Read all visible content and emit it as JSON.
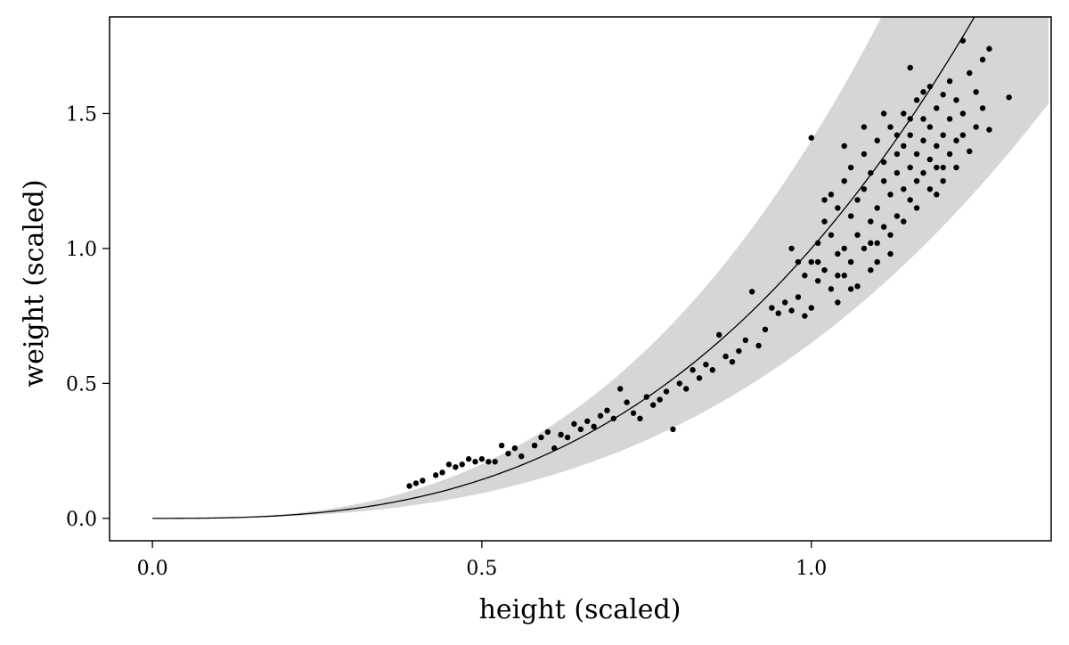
{
  "chart_data": {
    "type": "scatter",
    "title": "",
    "xlabel": "height (scaled)",
    "ylabel": "weight (scaled)",
    "xlim": [
      -0.065,
      1.364
    ],
    "ylim": [
      -0.083,
      1.858
    ],
    "xticks": [
      0.0,
      0.5,
      1.0
    ],
    "xtick_labels": [
      "0.0",
      "0.5",
      "1.0"
    ],
    "yticks": [
      0.0,
      0.5,
      1.0,
      1.5
    ],
    "ytick_labels": [
      "0.0",
      "0.5",
      "1.0",
      "1.5"
    ],
    "grid": false,
    "colors": {
      "points": "#000000",
      "line": "#000000",
      "band": "#d6d6d6"
    },
    "mean_curve": {
      "form": "y = x^2.8",
      "exponent": 2.8
    },
    "interval_band": {
      "lower_factor": 0.65,
      "upper_factor": 1.4
    },
    "points": [
      [
        0.39,
        0.12
      ],
      [
        0.4,
        0.13
      ],
      [
        0.41,
        0.14
      ],
      [
        0.43,
        0.16
      ],
      [
        0.44,
        0.17
      ],
      [
        0.45,
        0.2
      ],
      [
        0.46,
        0.19
      ],
      [
        0.47,
        0.2
      ],
      [
        0.48,
        0.22
      ],
      [
        0.49,
        0.21
      ],
      [
        0.5,
        0.22
      ],
      [
        0.51,
        0.21
      ],
      [
        0.52,
        0.21
      ],
      [
        0.53,
        0.27
      ],
      [
        0.54,
        0.24
      ],
      [
        0.55,
        0.26
      ],
      [
        0.56,
        0.23
      ],
      [
        0.58,
        0.27
      ],
      [
        0.59,
        0.3
      ],
      [
        0.6,
        0.32
      ],
      [
        0.61,
        0.26
      ],
      [
        0.62,
        0.31
      ],
      [
        0.63,
        0.3
      ],
      [
        0.64,
        0.35
      ],
      [
        0.65,
        0.33
      ],
      [
        0.66,
        0.36
      ],
      [
        0.67,
        0.34
      ],
      [
        0.68,
        0.38
      ],
      [
        0.69,
        0.4
      ],
      [
        0.7,
        0.37
      ],
      [
        0.71,
        0.48
      ],
      [
        0.72,
        0.43
      ],
      [
        0.73,
        0.39
      ],
      [
        0.74,
        0.37
      ],
      [
        0.75,
        0.45
      ],
      [
        0.76,
        0.42
      ],
      [
        0.77,
        0.44
      ],
      [
        0.78,
        0.47
      ],
      [
        0.79,
        0.33
      ],
      [
        0.8,
        0.5
      ],
      [
        0.81,
        0.48
      ],
      [
        0.82,
        0.55
      ],
      [
        0.83,
        0.52
      ],
      [
        0.84,
        0.57
      ],
      [
        0.85,
        0.55
      ],
      [
        0.86,
        0.68
      ],
      [
        0.87,
        0.6
      ],
      [
        0.88,
        0.58
      ],
      [
        0.89,
        0.62
      ],
      [
        0.9,
        0.66
      ],
      [
        0.91,
        0.84
      ],
      [
        0.92,
        0.64
      ],
      [
        0.93,
        0.7
      ],
      [
        0.94,
        0.78
      ],
      [
        0.95,
        0.76
      ],
      [
        0.96,
        0.8
      ],
      [
        0.97,
        0.77
      ],
      [
        0.98,
        0.82
      ],
      [
        0.99,
        0.75
      ],
      [
        1.0,
        0.78
      ],
      [
        1.0,
        1.41
      ],
      [
        1.0,
        0.95
      ],
      [
        1.01,
        1.02
      ],
      [
        1.01,
        0.88
      ],
      [
        1.02,
        1.1
      ],
      [
        1.02,
        0.92
      ],
      [
        1.03,
        1.2
      ],
      [
        1.03,
        0.85
      ],
      [
        1.03,
        1.05
      ],
      [
        1.04,
        0.98
      ],
      [
        1.04,
        1.15
      ],
      [
        1.04,
        0.8
      ],
      [
        1.05,
        1.25
      ],
      [
        1.05,
        1.0
      ],
      [
        1.05,
        0.9
      ],
      [
        1.06,
        1.12
      ],
      [
        1.06,
        1.3
      ],
      [
        1.06,
        0.95
      ],
      [
        1.07,
        1.05
      ],
      [
        1.07,
        1.18
      ],
      [
        1.07,
        0.86
      ],
      [
        1.08,
        1.22
      ],
      [
        1.08,
        1.35
      ],
      [
        1.08,
        1.0
      ],
      [
        1.09,
        1.1
      ],
      [
        1.09,
        1.28
      ],
      [
        1.09,
        0.92
      ],
      [
        1.1,
        1.4
      ],
      [
        1.1,
        1.15
      ],
      [
        1.1,
        1.02
      ],
      [
        1.11,
        1.25
      ],
      [
        1.11,
        1.32
      ],
      [
        1.11,
        1.08
      ],
      [
        1.12,
        1.45
      ],
      [
        1.12,
        1.2
      ],
      [
        1.12,
        0.98
      ],
      [
        1.13,
        1.35
      ],
      [
        1.13,
        1.28
      ],
      [
        1.13,
        1.12
      ],
      [
        1.14,
        1.5
      ],
      [
        1.14,
        1.38
      ],
      [
        1.14,
        1.22
      ],
      [
        1.15,
        1.42
      ],
      [
        1.15,
        1.3
      ],
      [
        1.15,
        1.18
      ],
      [
        1.15,
        1.67
      ],
      [
        1.16,
        1.55
      ],
      [
        1.16,
        1.35
      ],
      [
        1.16,
        1.25
      ],
      [
        1.17,
        1.48
      ],
      [
        1.17,
        1.4
      ],
      [
        1.17,
        1.28
      ],
      [
        1.18,
        1.6
      ],
      [
        1.18,
        1.45
      ],
      [
        1.18,
        1.33
      ],
      [
        1.19,
        1.52
      ],
      [
        1.19,
        1.38
      ],
      [
        1.19,
        1.2
      ],
      [
        1.2,
        1.57
      ],
      [
        1.2,
        1.42
      ],
      [
        1.2,
        1.3
      ],
      [
        1.21,
        1.62
      ],
      [
        1.21,
        1.48
      ],
      [
        1.21,
        1.35
      ],
      [
        1.22,
        1.55
      ],
      [
        1.22,
        1.4
      ],
      [
        1.23,
        1.77
      ],
      [
        1.23,
        1.5
      ],
      [
        1.24,
        1.65
      ],
      [
        1.24,
        1.36
      ],
      [
        1.25,
        1.58
      ],
      [
        1.25,
        1.45
      ],
      [
        1.26,
        1.7
      ],
      [
        1.26,
        1.52
      ],
      [
        1.27,
        1.74
      ],
      [
        1.27,
        1.44
      ],
      [
        1.3,
        1.56
      ],
      [
        1.05,
        1.38
      ],
      [
        1.08,
        1.45
      ],
      [
        1.02,
        1.18
      ],
      [
        1.09,
        1.02
      ],
      [
        1.12,
        1.05
      ],
      [
        1.14,
        1.1
      ],
      [
        1.16,
        1.15
      ],
      [
        1.18,
        1.22
      ],
      [
        1.2,
        1.25
      ],
      [
        1.22,
        1.3
      ],
      [
        1.1,
        0.95
      ],
      [
        1.06,
        0.85
      ],
      [
        1.04,
        0.9
      ],
      [
        1.01,
        0.95
      ],
      [
        0.99,
        0.9
      ],
      [
        0.98,
        0.95
      ],
      [
        0.97,
        1.0
      ],
      [
        1.13,
        1.42
      ],
      [
        1.11,
        1.5
      ],
      [
        1.17,
        1.58
      ],
      [
        1.19,
        1.3
      ],
      [
        1.23,
        1.42
      ],
      [
        1.15,
        1.48
      ]
    ]
  }
}
